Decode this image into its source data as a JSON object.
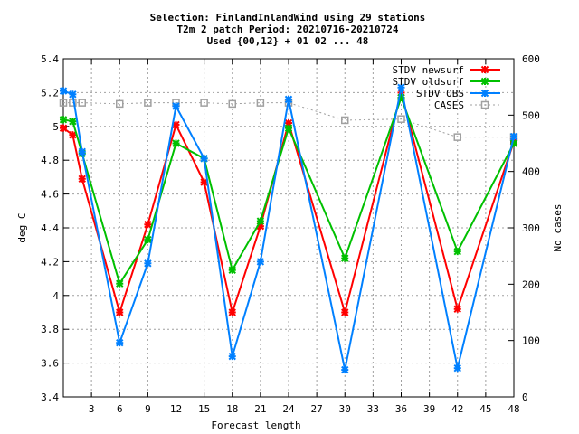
{
  "chart_data": {
    "type": "line",
    "title_lines": [
      "Selection: FinlandInlandWind using    29 stations",
      "T2m 2 patch   Period: 20210716-20210724",
      "Used {00,12} + 01 02 ... 48"
    ],
    "xlabel": "Forecast length",
    "ylabel": "deg C",
    "y2label": "No cases",
    "xlim": [
      0,
      48
    ],
    "ylim": [
      3.4,
      5.4
    ],
    "y2lim": [
      0,
      600
    ],
    "xticks": [
      3,
      6,
      9,
      12,
      15,
      18,
      21,
      24,
      27,
      30,
      33,
      36,
      39,
      42,
      45,
      48
    ],
    "yticks": [
      3.4,
      3.6,
      3.8,
      4,
      4.2,
      4.4,
      4.6,
      4.8,
      5,
      5.2,
      5.4
    ],
    "y2ticks": [
      0,
      100,
      200,
      300,
      400,
      500,
      600
    ],
    "grid": true,
    "legend_position": "top-right",
    "series": [
      {
        "name": "STDV newsurf",
        "color": "#ff0000",
        "marker": "x",
        "axis": "y",
        "x": [
          0,
          1,
          2,
          3,
          6,
          9,
          12,
          15,
          18,
          21,
          24,
          30,
          36,
          42,
          48
        ],
        "y": [
          4.99,
          4.95,
          4.69,
          null,
          3.9,
          4.42,
          5.01,
          4.67,
          3.9,
          4.41,
          5.02,
          3.9,
          5.2,
          3.92,
          4.91
        ]
      },
      {
        "name": "STDV oldsurf",
        "color": "#00c000",
        "marker": "x",
        "axis": "y",
        "x": [
          0,
          1,
          2,
          3,
          6,
          9,
          12,
          15,
          18,
          21,
          24,
          30,
          36,
          42,
          48
        ],
        "y": [
          5.04,
          5.03,
          4.84,
          null,
          4.07,
          4.33,
          4.9,
          4.81,
          4.15,
          4.44,
          4.99,
          4.22,
          5.17,
          4.26,
          4.9
        ]
      },
      {
        "name": "STDV OBS",
        "color": "#0080ff",
        "marker": "x",
        "axis": "y",
        "x": [
          0,
          1,
          2,
          3,
          6,
          9,
          12,
          15,
          18,
          21,
          24,
          30,
          36,
          42,
          48
        ],
        "y": [
          5.21,
          5.19,
          4.85,
          null,
          3.72,
          4.19,
          5.12,
          4.81,
          3.64,
          4.2,
          5.16,
          3.56,
          5.23,
          3.57,
          4.94
        ]
      },
      {
        "name": "CASES",
        "color": "#a0a0a0",
        "marker": "square",
        "axis": "y2",
        "x": [
          0,
          1,
          2,
          6,
          9,
          12,
          15,
          18,
          21,
          24,
          30,
          36,
          42,
          48
        ],
        "y": [
          522,
          522,
          522,
          520,
          522,
          522,
          522,
          520,
          522,
          522,
          491,
          493,
          461,
          461
        ]
      }
    ]
  }
}
